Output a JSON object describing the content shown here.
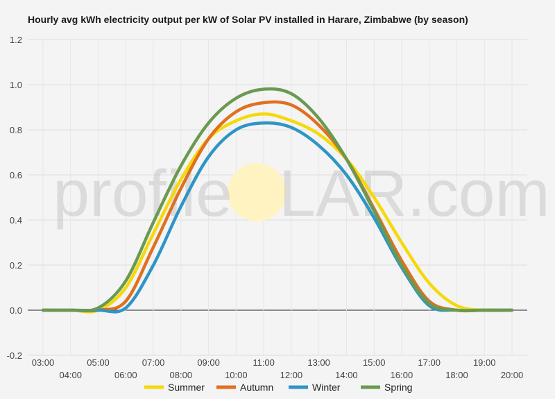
{
  "watermark": {
    "left": "profile",
    "right": "LAR.com",
    "sun_color": "#fff3c2"
  },
  "chart_data": {
    "type": "line",
    "title": "Hourly avg kWh electricity output per kW of Solar PV installed in Harare, Zimbabwe (by season)",
    "xlabel": "",
    "ylabel": "",
    "ylim": [
      -0.2,
      1.2
    ],
    "yticks": [
      -0.2,
      0.0,
      0.2,
      0.4,
      0.6,
      0.8,
      1.0,
      1.2
    ],
    "ytick_labels": [
      "-0.2",
      "0.0",
      "0.2",
      "0.4",
      "0.6",
      "0.8",
      "1.0",
      "1.2"
    ],
    "xlim": [
      3,
      20
    ],
    "xticks": [
      3,
      4,
      5,
      6,
      7,
      8,
      9,
      10,
      11,
      12,
      13,
      14,
      15,
      16,
      17,
      18,
      19,
      20
    ],
    "xtick_labels": [
      "03:00",
      "04:00",
      "05:00",
      "06:00",
      "07:00",
      "08:00",
      "09:00",
      "10:00",
      "11:00",
      "12:00",
      "13:00",
      "14:00",
      "15:00",
      "16:00",
      "17:00",
      "18:00",
      "19:00",
      "20:00"
    ],
    "grid": true,
    "legend_position": "bottom",
    "x": [
      3,
      4,
      5,
      6,
      7,
      8,
      9,
      10,
      11,
      12,
      13,
      14,
      15,
      16,
      17,
      18,
      19,
      20
    ],
    "series": [
      {
        "name": "Summer",
        "color": "#f5d90a",
        "values": [
          0.0,
          0.0,
          0.0,
          0.1,
          0.34,
          0.58,
          0.76,
          0.84,
          0.87,
          0.84,
          0.78,
          0.67,
          0.5,
          0.3,
          0.12,
          0.02,
          0.0,
          0.0
        ]
      },
      {
        "name": "Autumn",
        "color": "#e07020",
        "values": [
          0.0,
          0.0,
          0.0,
          0.04,
          0.28,
          0.54,
          0.76,
          0.88,
          0.92,
          0.91,
          0.82,
          0.67,
          0.45,
          0.22,
          0.04,
          0.0,
          0.0,
          0.0
        ]
      },
      {
        "name": "Winter",
        "color": "#2e95c6",
        "values": [
          0.0,
          0.0,
          0.0,
          0.01,
          0.2,
          0.46,
          0.68,
          0.8,
          0.83,
          0.81,
          0.73,
          0.6,
          0.41,
          0.19,
          0.02,
          0.0,
          0.0,
          0.0
        ]
      },
      {
        "name": "Spring",
        "color": "#6a9a50",
        "values": [
          0.0,
          0.0,
          0.01,
          0.13,
          0.39,
          0.64,
          0.83,
          0.94,
          0.98,
          0.96,
          0.85,
          0.67,
          0.44,
          0.2,
          0.03,
          0.0,
          0.0,
          0.0
        ]
      }
    ]
  }
}
